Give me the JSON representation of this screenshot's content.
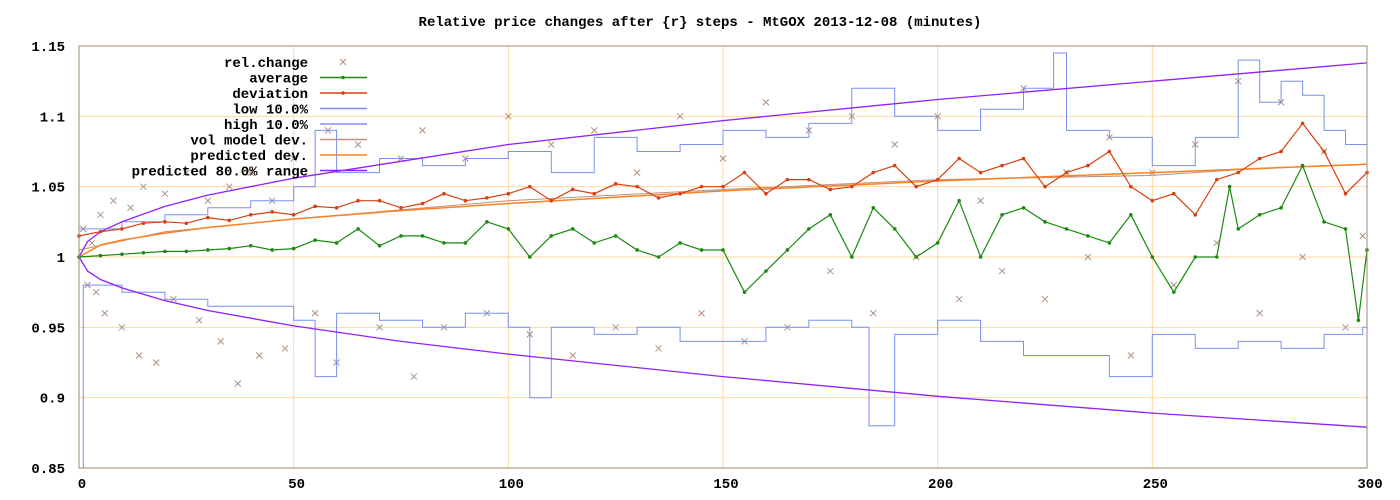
{
  "chart_data": {
    "type": "line",
    "title": "Relative price changes after {r} steps - MtGOX 2013-12-08 (minutes)",
    "xlabel": "",
    "ylabel": "",
    "xlim": [
      0,
      300
    ],
    "ylim": [
      0.85,
      1.15
    ],
    "x_ticks": [
      "0",
      "50",
      "100",
      "150",
      "200",
      "250",
      "300"
    ],
    "y_ticks": [
      "0.85",
      "0.9",
      "0.95",
      "1",
      "1.05",
      "1.1",
      "1.15"
    ],
    "grid": true,
    "legend_position": "top-left",
    "colors": {
      "rel_change": "#b09080",
      "average": "#1a8a10",
      "deviation": "#d84010",
      "low": "#7890f0",
      "high": "#7890f0",
      "vol_model": "#c09080",
      "predicted_dev": "#ff8020",
      "range": "#9020ff",
      "grid": "#ffd8a0",
      "frame": "#a08868"
    },
    "series": [
      {
        "name": "rel.change",
        "style": "points",
        "points": [
          [
            1,
            1.02
          ],
          [
            2,
            0.98
          ],
          [
            3,
            1.01
          ],
          [
            4,
            0.975
          ],
          [
            5,
            1.03
          ],
          [
            6,
            0.96
          ],
          [
            8,
            1.04
          ],
          [
            10,
            0.95
          ],
          [
            12,
            1.035
          ],
          [
            14,
            0.93
          ],
          [
            15,
            1.05
          ],
          [
            18,
            0.925
          ],
          [
            20,
            1.045
          ],
          [
            22,
            0.97
          ],
          [
            25,
            1.06
          ],
          [
            28,
            0.955
          ],
          [
            30,
            1.04
          ],
          [
            33,
            0.94
          ],
          [
            35,
            1.05
          ],
          [
            37,
            0.91
          ],
          [
            40,
            1.06
          ],
          [
            42,
            0.93
          ],
          [
            45,
            1.04
          ],
          [
            48,
            0.935
          ],
          [
            50,
            1.07
          ],
          [
            55,
            0.96
          ],
          [
            58,
            1.09
          ],
          [
            60,
            0.925
          ],
          [
            65,
            1.08
          ],
          [
            70,
            0.95
          ],
          [
            75,
            1.07
          ],
          [
            78,
            0.915
          ],
          [
            80,
            1.09
          ],
          [
            85,
            0.95
          ],
          [
            90,
            1.07
          ],
          [
            95,
            0.96
          ],
          [
            100,
            1.1
          ],
          [
            105,
            0.945
          ],
          [
            110,
            1.08
          ],
          [
            115,
            0.93
          ],
          [
            120,
            1.09
          ],
          [
            125,
            0.95
          ],
          [
            130,
            1.06
          ],
          [
            135,
            0.935
          ],
          [
            140,
            1.1
          ],
          [
            145,
            0.96
          ],
          [
            150,
            1.07
          ],
          [
            155,
            0.94
          ],
          [
            160,
            1.11
          ],
          [
            165,
            0.95
          ],
          [
            170,
            1.09
          ],
          [
            175,
            0.99
          ],
          [
            180,
            1.1
          ],
          [
            185,
            0.96
          ],
          [
            190,
            1.08
          ],
          [
            195,
            1.0
          ],
          [
            200,
            1.1
          ],
          [
            205,
            0.97
          ],
          [
            210,
            1.04
          ],
          [
            215,
            0.99
          ],
          [
            220,
            1.12
          ],
          [
            225,
            0.97
          ],
          [
            230,
            1.06
          ],
          [
            235,
            1.0
          ],
          [
            240,
            1.085
          ],
          [
            245,
            0.93
          ],
          [
            250,
            1.06
          ],
          [
            255,
            0.98
          ],
          [
            260,
            1.08
          ],
          [
            265,
            1.01
          ],
          [
            270,
            1.125
          ],
          [
            275,
            0.96
          ],
          [
            280,
            1.11
          ],
          [
            285,
            1.0
          ],
          [
            290,
            1.075
          ],
          [
            295,
            0.95
          ],
          [
            299,
            1.015
          ]
        ]
      },
      {
        "name": "average",
        "style": "linespoints",
        "x": [
          0,
          5,
          10,
          15,
          20,
          25,
          30,
          35,
          40,
          45,
          50,
          55,
          60,
          65,
          70,
          75,
          80,
          85,
          90,
          95,
          100,
          105,
          110,
          115,
          120,
          125,
          130,
          135,
          140,
          145,
          150,
          155,
          160,
          165,
          170,
          175,
          180,
          185,
          190,
          195,
          200,
          205,
          210,
          215,
          220,
          225,
          230,
          235,
          240,
          245,
          250,
          255,
          260,
          265,
          268,
          270,
          275,
          280,
          285,
          290,
          295,
          298,
          300
        ],
        "values": [
          1.0,
          1.001,
          1.002,
          1.003,
          1.004,
          1.004,
          1.005,
          1.006,
          1.008,
          1.005,
          1.006,
          1.012,
          1.01,
          1.02,
          1.008,
          1.015,
          1.015,
          1.01,
          1.01,
          1.025,
          1.02,
          1.0,
          1.015,
          1.02,
          1.01,
          1.015,
          1.005,
          1.0,
          1.01,
          1.005,
          1.005,
          0.975,
          0.99,
          1.005,
          1.02,
          1.03,
          1.0,
          1.035,
          1.02,
          1.0,
          1.01,
          1.04,
          1.0,
          1.03,
          1.035,
          1.025,
          1.02,
          1.015,
          1.01,
          1.03,
          1.0,
          0.975,
          1.0,
          1.0,
          1.05,
          1.02,
          1.03,
          1.035,
          1.065,
          1.025,
          1.02,
          0.955,
          1.005
        ]
      },
      {
        "name": "deviation",
        "style": "linespoints",
        "x": [
          0,
          5,
          10,
          15,
          20,
          25,
          30,
          35,
          40,
          45,
          50,
          55,
          60,
          65,
          70,
          75,
          80,
          85,
          90,
          95,
          100,
          105,
          110,
          115,
          120,
          125,
          130,
          135,
          140,
          145,
          150,
          155,
          160,
          165,
          170,
          175,
          180,
          185,
          190,
          195,
          200,
          205,
          210,
          215,
          220,
          225,
          230,
          235,
          240,
          245,
          250,
          255,
          260,
          265,
          270,
          275,
          280,
          285,
          290,
          295,
          300
        ],
        "values": [
          1.015,
          1.018,
          1.02,
          1.024,
          1.025,
          1.024,
          1.028,
          1.026,
          1.03,
          1.032,
          1.03,
          1.036,
          1.035,
          1.04,
          1.04,
          1.035,
          1.038,
          1.045,
          1.04,
          1.042,
          1.045,
          1.05,
          1.04,
          1.048,
          1.045,
          1.052,
          1.05,
          1.042,
          1.045,
          1.05,
          1.05,
          1.06,
          1.045,
          1.055,
          1.055,
          1.048,
          1.05,
          1.06,
          1.065,
          1.05,
          1.055,
          1.07,
          1.06,
          1.065,
          1.07,
          1.05,
          1.06,
          1.065,
          1.075,
          1.05,
          1.04,
          1.045,
          1.03,
          1.055,
          1.06,
          1.07,
          1.075,
          1.095,
          1.075,
          1.045,
          1.06
        ]
      },
      {
        "name": "low 10.0%",
        "style": "steps",
        "x": [
          0,
          1,
          10,
          20,
          30,
          40,
          50,
          55,
          60,
          70,
          80,
          90,
          100,
          105,
          110,
          120,
          130,
          140,
          150,
          160,
          170,
          180,
          184,
          190,
          200,
          210,
          220,
          230,
          240,
          250,
          260,
          270,
          280,
          290,
          299,
          300
        ],
        "values": [
          0.85,
          0.98,
          0.975,
          0.97,
          0.965,
          0.965,
          0.955,
          0.915,
          0.96,
          0.955,
          0.95,
          0.96,
          0.95,
          0.9,
          0.95,
          0.945,
          0.95,
          0.94,
          0.94,
          0.95,
          0.955,
          0.95,
          0.88,
          0.945,
          0.955,
          0.94,
          0.93,
          0.93,
          0.915,
          0.945,
          0.935,
          0.94,
          0.935,
          0.945,
          0.95,
          0.85
        ]
      },
      {
        "name": "high 10.0%",
        "style": "steps",
        "x": [
          0,
          10,
          20,
          30,
          40,
          50,
          55,
          60,
          70,
          80,
          90,
          100,
          110,
          120,
          130,
          140,
          150,
          160,
          170,
          180,
          190,
          200,
          210,
          220,
          227,
          230,
          240,
          250,
          260,
          270,
          275,
          280,
          285,
          290,
          295,
          300
        ],
        "values": [
          1.02,
          1.025,
          1.03,
          1.035,
          1.04,
          1.05,
          1.09,
          1.06,
          1.07,
          1.065,
          1.07,
          1.075,
          1.06,
          1.085,
          1.075,
          1.08,
          1.09,
          1.085,
          1.095,
          1.12,
          1.1,
          1.09,
          1.105,
          1.12,
          1.145,
          1.09,
          1.085,
          1.065,
          1.085,
          1.14,
          1.11,
          1.125,
          1.115,
          1.09,
          1.08,
          1.095
        ]
      },
      {
        "name": "vol model dev.",
        "style": "lines",
        "x": [
          0,
          20,
          50,
          100,
          150,
          200,
          250,
          270,
          290,
          300
        ],
        "values": [
          1.005,
          1.018,
          1.027,
          1.04,
          1.048,
          1.055,
          1.058,
          1.062,
          1.065,
          1.066
        ]
      },
      {
        "name": "predicted dev.",
        "style": "lines",
        "x": [
          0,
          5,
          10,
          20,
          30,
          50,
          75,
          100,
          150,
          200,
          250,
          300
        ],
        "values": [
          1.0,
          1.0085,
          1.012,
          1.017,
          1.021,
          1.027,
          1.033,
          1.038,
          1.047,
          1.054,
          1.06,
          1.066
        ]
      },
      {
        "name": "predicted 80.0% range",
        "style": "lines",
        "upper": {
          "x": [
            0,
            2,
            5,
            10,
            20,
            30,
            50,
            75,
            100,
            150,
            200,
            250,
            300
          ],
          "values": [
            1.0,
            1.011,
            1.018,
            1.025,
            1.036,
            1.044,
            1.056,
            1.068,
            1.08,
            1.097,
            1.112,
            1.125,
            1.138
          ]
        },
        "lower": {
          "x": [
            0,
            2,
            5,
            10,
            20,
            30,
            50,
            75,
            100,
            150,
            200,
            250,
            300
          ],
          "values": [
            1.0,
            0.99,
            0.984,
            0.978,
            0.969,
            0.962,
            0.951,
            0.94,
            0.931,
            0.915,
            0.901,
            0.889,
            0.879
          ]
        }
      }
    ]
  }
}
